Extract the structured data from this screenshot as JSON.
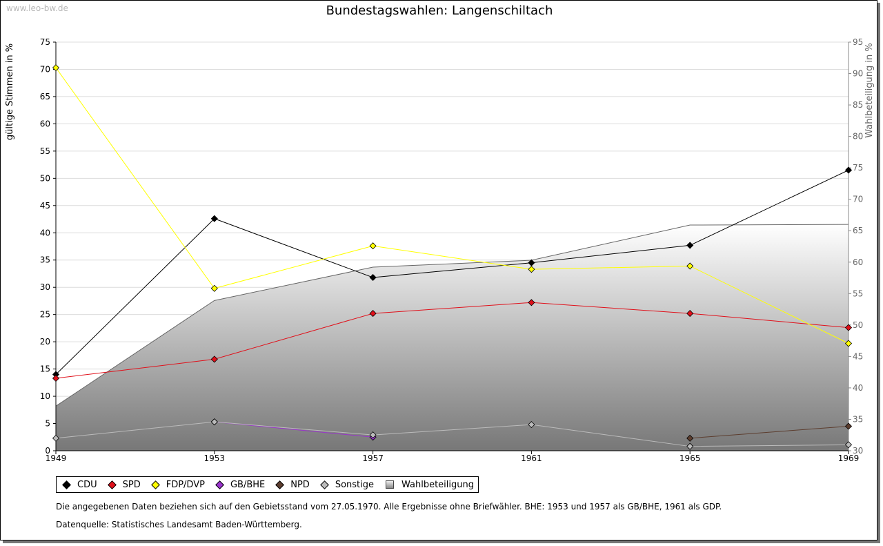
{
  "watermark": "www.leo-bw.de",
  "chart_data": {
    "type": "line",
    "title": "Bundestagswahlen: Langenschiltach",
    "ylabel": "gültige Stimmen in %",
    "ylabel_right": "Wahlbeteiligung in %",
    "x": [
      1949,
      1953,
      1957,
      1961,
      1965,
      1969
    ],
    "ylim": [
      0,
      75
    ],
    "yticks": [
      0,
      5,
      10,
      15,
      20,
      25,
      30,
      35,
      40,
      45,
      50,
      55,
      60,
      65,
      70,
      75
    ],
    "ylim_right": [
      30,
      95
    ],
    "yticks_right": [
      30,
      35,
      40,
      45,
      50,
      55,
      60,
      65,
      70,
      75,
      80,
      85,
      90,
      95
    ],
    "grid": true,
    "legend_position": "bottom-left",
    "series": [
      {
        "name": "CDU",
        "color": "#000000",
        "values": [
          14.0,
          42.6,
          31.8,
          34.5,
          37.7,
          51.5
        ]
      },
      {
        "name": "SPD",
        "color": "#e0101a",
        "values": [
          13.3,
          16.8,
          25.2,
          27.2,
          25.2,
          22.6
        ]
      },
      {
        "name": "FDP/DVP",
        "color": "#ffff00",
        "values": [
          70.3,
          29.8,
          37.6,
          33.3,
          33.9,
          19.7
        ]
      },
      {
        "name": "GB/BHE",
        "color": "#9933cc",
        "values": [
          null,
          5.3,
          2.5,
          null,
          null,
          null
        ]
      },
      {
        "name": "NPD",
        "color": "#5c3d2e",
        "values": [
          null,
          null,
          null,
          null,
          2.3,
          4.5
        ]
      },
      {
        "name": "Sonstige",
        "color": "#bbbbbb",
        "values": [
          2.3,
          5.3,
          2.9,
          4.8,
          0.8,
          1.1
        ]
      }
    ],
    "area_series": {
      "name": "Wahlbeteiligung",
      "axis": "right",
      "values": [
        37.1,
        53.9,
        59.2,
        60.3,
        65.9,
        66.0
      ]
    }
  },
  "notes": {
    "line1": "Die angegebenen Daten beziehen sich auf den Gebietsstand vom 27.05.1970. Alle Ergebnisse ohne Briefwähler. BHE: 1953 und 1957 als GB/BHE, 1961 als GDP.",
    "line2": "Datenquelle: Statistisches Landesamt Baden-Württemberg."
  }
}
